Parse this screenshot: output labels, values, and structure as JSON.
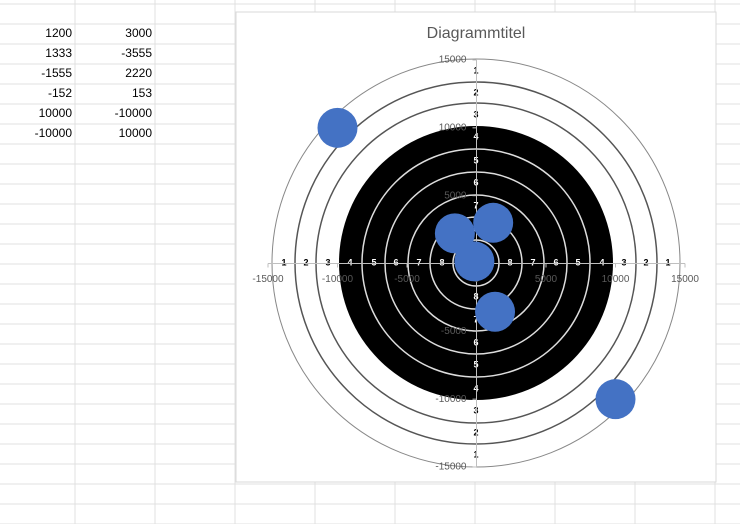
{
  "chart_data": {
    "type": "scatter",
    "title": "Diagrammtitel",
    "x": [
      1200,
      1333,
      -1555,
      -152,
      10000,
      -10000
    ],
    "values": [
      3000,
      -3555,
      2220,
      153,
      -10000,
      10000
    ],
    "color": "#4472c4",
    "xlim": [
      -15000,
      15000
    ],
    "ylim": [
      -15000,
      15000
    ],
    "xticks": [
      -15000,
      -10000,
      -5000,
      0,
      5000,
      10000,
      15000
    ],
    "yticks": [
      -15000,
      -10000,
      -5000,
      0,
      5000,
      10000,
      15000
    ]
  },
  "target": {
    "ring_labels": [
      "1",
      "2",
      "3",
      "4",
      "5",
      "6",
      "7",
      "8"
    ]
  }
}
